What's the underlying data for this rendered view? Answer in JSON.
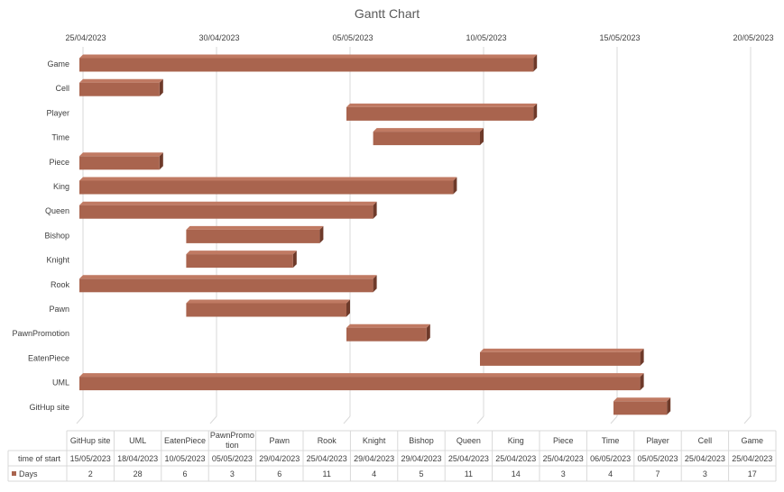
{
  "chart_data": {
    "type": "bar",
    "orientation": "horizontal",
    "stacked_offset_series": true,
    "title": "Gantt Chart",
    "x_axis": {
      "position": "top",
      "ticks": [
        "25/04/2023",
        "30/04/2023",
        "05/05/2023",
        "10/05/2023",
        "15/05/2023",
        "20/05/2023"
      ],
      "min": "2023-04-25",
      "max": "2023-05-20",
      "gridlines": true
    },
    "categories": [
      "Game",
      "Cell",
      "Player",
      "Time",
      "Piece",
      "King",
      "Queen",
      "Bishop",
      "Knight",
      "Rook",
      "Pawn",
      "PawnPromotion",
      "EatenPiece",
      "UML",
      "GitHup site"
    ],
    "series": [
      {
        "name": "time of start",
        "visible": false,
        "values": [
          "25/04/2023",
          "25/04/2023",
          "05/05/2023",
          "06/05/2023",
          "25/04/2023",
          "25/04/2023",
          "25/04/2023",
          "29/04/2023",
          "29/04/2023",
          "25/04/2023",
          "29/04/2023",
          "05/05/2023",
          "10/05/2023",
          "18/04/2023",
          "15/05/2023"
        ]
      },
      {
        "name": "Days",
        "color": "#a9644e",
        "values": [
          17,
          3,
          7,
          4,
          3,
          14,
          11,
          5,
          4,
          11,
          6,
          3,
          6,
          28,
          2
        ]
      }
    ],
    "data_table": {
      "columns": [
        "GitHup site",
        "UML",
        "EatenPiece",
        "PawnPromotion",
        "Pawn",
        "Rook",
        "Knight",
        "Bishop",
        "Queen",
        "King",
        "Piece",
        "Time",
        "Player",
        "Cell",
        "Game"
      ],
      "column_display": [
        "GitHup site",
        "UML",
        "EatenPiece",
        "PawnPromo\ntion",
        "Pawn",
        "Rook",
        "Knight",
        "Bishop",
        "Queen",
        "King",
        "Piece",
        "Time",
        "Player",
        "Cell",
        "Game"
      ],
      "rows": [
        {
          "label": "time of start",
          "values": [
            "15/05/2023",
            "18/04/2023",
            "10/05/2023",
            "05/05/2023",
            "29/04/2023",
            "25/04/2023",
            "29/04/2023",
            "29/04/2023",
            "25/04/2023",
            "25/04/2023",
            "25/04/2023",
            "06/05/2023",
            "05/05/2023",
            "25/04/2023",
            "25/04/2023"
          ]
        },
        {
          "label": "Days",
          "legend_key": true,
          "values": [
            "2",
            "28",
            "6",
            "3",
            "6",
            "11",
            "4",
            "5",
            "11",
            "14",
            "3",
            "4",
            "7",
            "3",
            "17"
          ]
        }
      ]
    },
    "colors": {
      "bar": "#a9644e",
      "bar_top": "#c07a63",
      "bar_side": "#6e3a2a"
    }
  }
}
